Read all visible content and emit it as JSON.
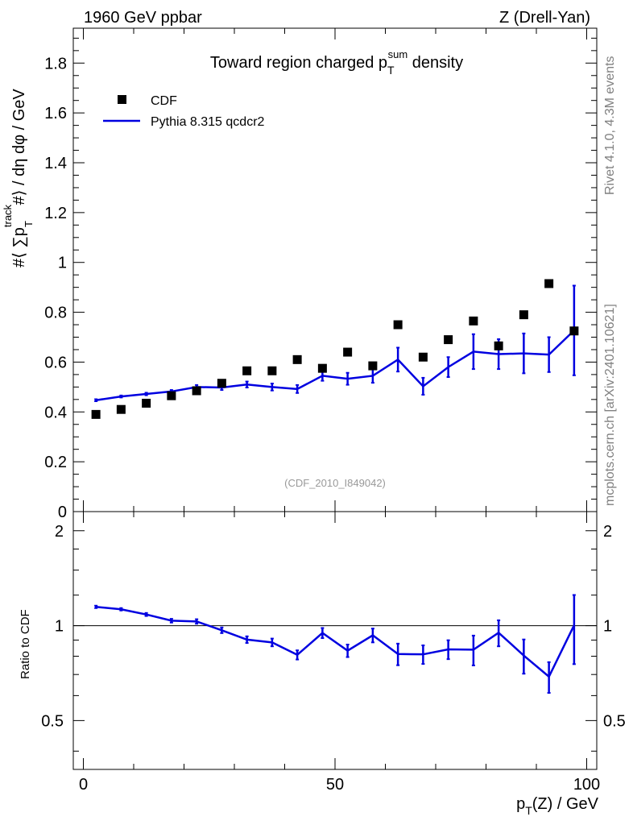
{
  "header": {
    "left": "1960 GeV ppbar",
    "right": "Z (Drell-Yan)"
  },
  "main": {
    "title": "Toward region charged p",
    "title_sub": "T",
    "title_sup": "sum",
    "title_rest": " density",
    "watermark": "(CDF_2010_I849042)",
    "ylabel": "#⟨ ∑p",
    "ylabel_sup": "track",
    "ylabel_sub": "T",
    "ylabel_rest": " #⟩ / dη dφ / GeV"
  },
  "ratio": {
    "ylabel": "Ratio to CDF"
  },
  "xaxis": {
    "label": "p",
    "label_sub": "T",
    "label_rest": "(Z) / GeV"
  },
  "side": {
    "rivet": "Rivet 4.1.0,  4.3M events",
    "mcplots": "mcplots.cern.ch [arXiv:2401.10621]"
  },
  "chart_data": {
    "type": "scatter+line",
    "xlim": [
      -2,
      102
    ],
    "main_ylim": [
      0,
      1.94
    ],
    "ratio_ylim": [
      0.35,
      2.3
    ],
    "x_ticks": [
      0,
      50,
      100
    ],
    "main_y_ticks": [
      0,
      0.2,
      0.4,
      0.6,
      0.8,
      1,
      1.2,
      1.4,
      1.6,
      1.8
    ],
    "main_y_tick_labels": [
      "0",
      "0.2",
      "0.4",
      "0.6",
      "0.8",
      "1",
      "1.2",
      "1.4",
      "1.6",
      "1.8"
    ],
    "ratio_y_ticks": [
      0.5,
      1,
      2
    ],
    "ratio_y_tick_labels": [
      "0.5",
      "1",
      "2"
    ],
    "x": [
      2.5,
      7.5,
      12.5,
      17.5,
      22.5,
      27.5,
      32.5,
      37.5,
      42.5,
      47.5,
      52.5,
      57.5,
      62.5,
      67.5,
      72.5,
      77.5,
      82.5,
      87.5,
      92.5,
      97.5
    ],
    "cdf": {
      "name": "CDF",
      "color": "#000000",
      "values": [
        0.39,
        0.41,
        0.435,
        0.465,
        0.485,
        0.515,
        0.565,
        0.565,
        0.61,
        0.575,
        0.64,
        0.585,
        0.75,
        0.62,
        0.69,
        0.765,
        0.665,
        0.79,
        0.915,
        0.725
      ]
    },
    "mc": {
      "name": "Pythia 8.315 qcdcr2",
      "color": "#0000e0",
      "values": [
        0.447,
        0.462,
        0.472,
        0.482,
        0.5,
        0.498,
        0.51,
        0.5,
        0.492,
        0.545,
        0.533,
        0.545,
        0.61,
        0.503,
        0.58,
        0.642,
        0.632,
        0.635,
        0.63,
        0.727
      ],
      "errors": [
        0.004,
        0.004,
        0.005,
        0.006,
        0.008,
        0.01,
        0.012,
        0.014,
        0.016,
        0.02,
        0.024,
        0.028,
        0.048,
        0.034,
        0.04,
        0.07,
        0.06,
        0.08,
        0.07,
        0.18
      ]
    },
    "ratio": {
      "values": [
        1.147,
        1.127,
        1.085,
        1.037,
        1.031,
        0.967,
        0.903,
        0.885,
        0.808,
        0.948,
        0.833,
        0.932,
        0.813,
        0.811,
        0.841,
        0.839,
        0.95,
        0.804,
        0.689,
        1.003
      ],
      "errors": [
        0.01,
        0.01,
        0.012,
        0.014,
        0.017,
        0.02,
        0.022,
        0.025,
        0.027,
        0.035,
        0.038,
        0.047,
        0.064,
        0.055,
        0.058,
        0.091,
        0.09,
        0.1,
        0.077,
        0.248
      ]
    }
  }
}
